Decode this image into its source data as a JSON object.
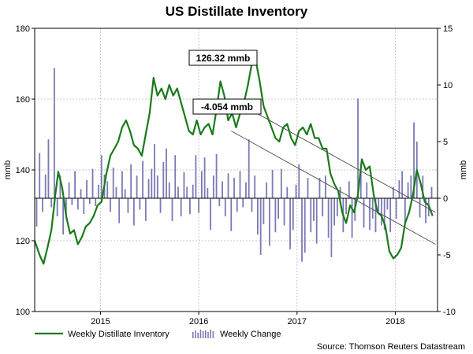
{
  "chart_data": {
    "type": "line",
    "title": "US Distillate Inventory",
    "ylabel": "mmb",
    "y2label": "mmb",
    "ylim": [
      100,
      180
    ],
    "y2lim": [
      -10,
      15
    ],
    "yticks": [
      100,
      120,
      140,
      160,
      180
    ],
    "y2ticks": [
      -10,
      -5,
      0,
      5,
      10,
      15
    ],
    "xlim": [
      2014.33,
      2018.43
    ],
    "xticks": [
      {
        "label": "2015",
        "x": 2015.0
      },
      {
        "label": "2016",
        "x": 2016.0
      },
      {
        "label": "2017",
        "x": 2017.0
      },
      {
        "label": "2018",
        "x": 2018.0
      }
    ],
    "grid": true,
    "legend_position": "bottom-left",
    "series": [
      {
        "name": "Weekly Distillate Inventory",
        "axis": "left",
        "type": "line",
        "color": "#1a7a1a",
        "points": [
          [
            2014.33,
            120
          ],
          [
            2014.38,
            116
          ],
          [
            2014.42,
            113.5
          ],
          [
            2014.46,
            118
          ],
          [
            2014.5,
            123
          ],
          [
            2014.54,
            133
          ],
          [
            2014.57,
            139.5
          ],
          [
            2014.61,
            135
          ],
          [
            2014.65,
            127
          ],
          [
            2014.69,
            122
          ],
          [
            2014.73,
            123
          ],
          [
            2014.77,
            119
          ],
          [
            2014.81,
            121
          ],
          [
            2014.85,
            124
          ],
          [
            2014.89,
            125
          ],
          [
            2014.93,
            127
          ],
          [
            2014.97,
            130
          ],
          [
            2015.01,
            131
          ],
          [
            2015.06,
            139
          ],
          [
            2015.1,
            144
          ],
          [
            2015.14,
            146
          ],
          [
            2015.18,
            148
          ],
          [
            2015.22,
            152
          ],
          [
            2015.26,
            154
          ],
          [
            2015.3,
            151
          ],
          [
            2015.34,
            147
          ],
          [
            2015.38,
            146
          ],
          [
            2015.42,
            144
          ],
          [
            2015.46,
            150
          ],
          [
            2015.5,
            156
          ],
          [
            2015.54,
            166
          ],
          [
            2015.58,
            161
          ],
          [
            2015.62,
            163
          ],
          [
            2015.66,
            160
          ],
          [
            2015.7,
            164
          ],
          [
            2015.74,
            161
          ],
          [
            2015.78,
            163
          ],
          [
            2015.82,
            159
          ],
          [
            2015.86,
            155
          ],
          [
            2015.9,
            151
          ],
          [
            2015.94,
            150
          ],
          [
            2015.98,
            154
          ],
          [
            2016.02,
            150
          ],
          [
            2016.06,
            152
          ],
          [
            2016.1,
            153
          ],
          [
            2016.14,
            150
          ],
          [
            2016.18,
            157
          ],
          [
            2016.22,
            165
          ],
          [
            2016.26,
            161
          ],
          [
            2016.3,
            154
          ],
          [
            2016.34,
            156
          ],
          [
            2016.38,
            152
          ],
          [
            2016.42,
            156
          ],
          [
            2016.46,
            159
          ],
          [
            2016.5,
            164
          ],
          [
            2016.54,
            170
          ],
          [
            2016.58,
            171
          ],
          [
            2016.62,
            165
          ],
          [
            2016.66,
            158
          ],
          [
            2016.7,
            155
          ],
          [
            2016.74,
            152
          ],
          [
            2016.78,
            149
          ],
          [
            2016.82,
            148
          ],
          [
            2016.86,
            152
          ],
          [
            2016.9,
            153
          ],
          [
            2016.94,
            149
          ],
          [
            2016.98,
            147
          ],
          [
            2017.02,
            151
          ],
          [
            2017.06,
            152
          ],
          [
            2017.1,
            150
          ],
          [
            2017.14,
            153
          ],
          [
            2017.18,
            149
          ],
          [
            2017.22,
            149
          ],
          [
            2017.26,
            146
          ],
          [
            2017.3,
            146
          ],
          [
            2017.34,
            139
          ],
          [
            2017.38,
            136
          ],
          [
            2017.42,
            134
          ],
          [
            2017.46,
            128
          ],
          [
            2017.5,
            125
          ],
          [
            2017.54,
            130
          ],
          [
            2017.58,
            128
          ],
          [
            2017.62,
            133
          ],
          [
            2017.66,
            143
          ],
          [
            2017.7,
            140
          ],
          [
            2017.74,
            141
          ],
          [
            2017.78,
            133
          ],
          [
            2017.82,
            128
          ],
          [
            2017.86,
            127
          ],
          [
            2017.9,
            124
          ],
          [
            2017.94,
            117
          ],
          [
            2017.98,
            115
          ],
          [
            2018.02,
            116
          ],
          [
            2018.06,
            118
          ],
          [
            2018.1,
            125
          ],
          [
            2018.14,
            128
          ],
          [
            2018.18,
            133
          ],
          [
            2018.22,
            140
          ],
          [
            2018.26,
            136
          ],
          [
            2018.3,
            131
          ],
          [
            2018.34,
            130
          ],
          [
            2018.38,
            127
          ]
        ]
      },
      {
        "name": "Weekly Change",
        "axis": "right",
        "type": "bar",
        "color": "#7a7ab4",
        "points": [
          [
            2014.35,
            -2.5
          ],
          [
            2014.38,
            4.0
          ],
          [
            2014.41,
            -1.2
          ],
          [
            2014.44,
            2.1
          ],
          [
            2014.47,
            5.2
          ],
          [
            2014.5,
            -0.8
          ],
          [
            2014.53,
            11.5
          ],
          [
            2014.56,
            -1.6
          ],
          [
            2014.59,
            2.0
          ],
          [
            2014.62,
            -3.2
          ],
          [
            2014.65,
            -1.8
          ],
          [
            2014.68,
            1.4
          ],
          [
            2014.71,
            -0.6
          ],
          [
            2014.74,
            2.4
          ],
          [
            2014.77,
            -1.0
          ],
          [
            2014.8,
            0.8
          ],
          [
            2014.83,
            -1.4
          ],
          [
            2014.86,
            1.6
          ],
          [
            2014.89,
            -0.5
          ],
          [
            2014.92,
            2.6
          ],
          [
            2014.95,
            -0.7
          ],
          [
            2014.98,
            1.2
          ],
          [
            2015.01,
            3.8
          ],
          [
            2015.04,
            2.1
          ],
          [
            2015.07,
            1.5
          ],
          [
            2015.1,
            -1.2
          ],
          [
            2015.13,
            2.7
          ],
          [
            2015.16,
            1.0
          ],
          [
            2015.19,
            -2.2
          ],
          [
            2015.22,
            2.4
          ],
          [
            2015.25,
            0.8
          ],
          [
            2015.28,
            -1.3
          ],
          [
            2015.31,
            3.0
          ],
          [
            2015.34,
            -2.4
          ],
          [
            2015.37,
            2.0
          ],
          [
            2015.4,
            -1.0
          ],
          [
            2015.43,
            3.3
          ],
          [
            2015.46,
            -2.0
          ],
          [
            2015.49,
            1.7
          ],
          [
            2015.52,
            2.6
          ],
          [
            2015.55,
            4.8
          ],
          [
            2015.58,
            2.0
          ],
          [
            2015.61,
            -1.3
          ],
          [
            2015.64,
            3.2
          ],
          [
            2015.67,
            4.4
          ],
          [
            2015.7,
            1.4
          ],
          [
            2015.73,
            -2.0
          ],
          [
            2015.76,
            3.8
          ],
          [
            2015.79,
            1.0
          ],
          [
            2015.82,
            -1.6
          ],
          [
            2015.85,
            2.3
          ],
          [
            2015.88,
            1.0
          ],
          [
            2015.91,
            -1.4
          ],
          [
            2015.94,
            1.2
          ],
          [
            2015.97,
            3.8
          ],
          [
            2016.0,
            -1.3
          ],
          [
            2016.03,
            2.4
          ],
          [
            2016.06,
            3.6
          ],
          [
            2016.09,
            0.9
          ],
          [
            2016.12,
            -2.8
          ],
          [
            2016.15,
            2.0
          ],
          [
            2016.18,
            3.9
          ],
          [
            2016.21,
            -0.7
          ],
          [
            2016.24,
            1.5
          ],
          [
            2016.27,
            -1.6
          ],
          [
            2016.3,
            2.2
          ],
          [
            2016.33,
            -2.9
          ],
          [
            2016.36,
            1.8
          ],
          [
            2016.39,
            -1.2
          ],
          [
            2016.42,
            2.4
          ],
          [
            2016.45,
            -0.8
          ],
          [
            2016.48,
            1.4
          ],
          [
            2016.51,
            5.2
          ],
          [
            2016.54,
            -1.2
          ],
          [
            2016.57,
            2.0
          ],
          [
            2016.6,
            -3.2
          ],
          [
            2016.63,
            -5.0
          ],
          [
            2016.66,
            -2.3
          ],
          [
            2016.69,
            1.4
          ],
          [
            2016.72,
            -4.2
          ],
          [
            2016.75,
            2.5
          ],
          [
            2016.78,
            -3.0
          ],
          [
            2016.81,
            -1.8
          ],
          [
            2016.84,
            2.6
          ],
          [
            2016.87,
            -2.4
          ],
          [
            2016.9,
            1.0
          ],
          [
            2016.93,
            -4.5
          ],
          [
            2016.96,
            -2.8
          ],
          [
            2016.99,
            1.2
          ],
          [
            2017.02,
            3.0
          ],
          [
            2017.05,
            -5.6
          ],
          [
            2017.08,
            -4.8
          ],
          [
            2017.11,
            1.8
          ],
          [
            2017.14,
            -3.0
          ],
          [
            2017.17,
            -2.0
          ],
          [
            2017.2,
            -4.0
          ],
          [
            2017.23,
            1.8
          ],
          [
            2017.26,
            -1.6
          ],
          [
            2017.29,
            2.0
          ],
          [
            2017.32,
            -3.5
          ],
          [
            2017.35,
            -5.2
          ],
          [
            2017.38,
            -2.4
          ],
          [
            2017.41,
            -1.6
          ],
          [
            2017.44,
            1.0
          ],
          [
            2017.47,
            -3.0
          ],
          [
            2017.5,
            -1.4
          ],
          [
            2017.53,
            1.5
          ],
          [
            2017.56,
            -3.5
          ],
          [
            2017.59,
            -2.0
          ],
          [
            2017.62,
            8.8
          ],
          [
            2017.65,
            3.0
          ],
          [
            2017.68,
            -2.6
          ],
          [
            2017.71,
            1.4
          ],
          [
            2017.74,
            -2.8
          ],
          [
            2017.77,
            -1.8
          ],
          [
            2017.8,
            -3.0
          ],
          [
            2017.83,
            -1.2
          ],
          [
            2017.86,
            -2.4
          ],
          [
            2017.89,
            -2.8
          ],
          [
            2017.92,
            -1.0
          ],
          [
            2017.95,
            -3.0
          ],
          [
            2017.98,
            1.0
          ],
          [
            2018.01,
            -1.8
          ],
          [
            2018.04,
            1.6
          ],
          [
            2018.07,
            2.4
          ],
          [
            2018.1,
            -2.2
          ],
          [
            2018.13,
            1.4
          ],
          [
            2018.16,
            2.0
          ],
          [
            2018.19,
            6.7
          ],
          [
            2018.22,
            5.0
          ],
          [
            2018.25,
            -1.7
          ],
          [
            2018.28,
            2.0
          ],
          [
            2018.31,
            -2.2
          ],
          [
            2018.34,
            -1.6
          ],
          [
            2018.37,
            1.0
          ]
        ]
      }
    ],
    "trendlines": [
      {
        "axis": "left",
        "from": [
          2016.33,
          160
        ],
        "to": [
          2018.41,
          128
        ],
        "label": "126.32 mmb"
      },
      {
        "axis": "left",
        "from": [
          2016.33,
          151
        ],
        "to": [
          2018.41,
          119
        ],
        "label": "-4.054 mmb"
      }
    ],
    "annotations": [
      {
        "label": "126.32 mmb",
        "anchor": [
          2016.38,
          159
        ]
      },
      {
        "label": "-4.054 mmb",
        "anchor": [
          2016.38,
          151
        ]
      }
    ],
    "source": "Source: Thomson Reuters Datastream"
  }
}
